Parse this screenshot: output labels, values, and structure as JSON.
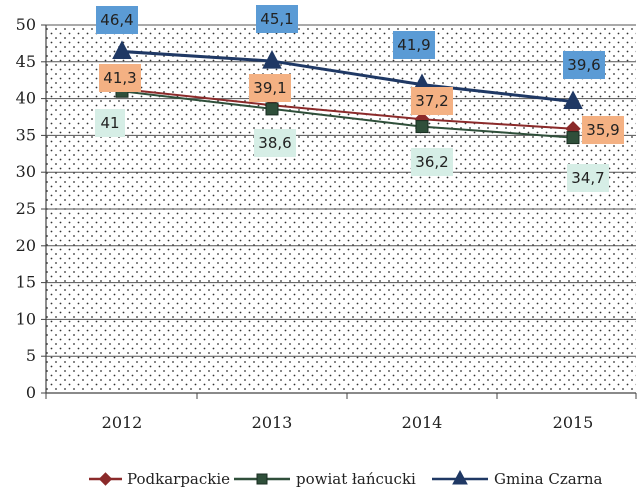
{
  "chart_data": {
    "type": "line",
    "categories": [
      "2012",
      "2013",
      "2014",
      "2015"
    ],
    "ylim": [
      0,
      50
    ],
    "yticks": [
      0,
      5,
      10,
      15,
      20,
      25,
      30,
      35,
      40,
      45,
      50
    ],
    "grid": true,
    "legend_position": "bottom",
    "series": [
      {
        "name": "Podkarpackie",
        "values": [
          41.3,
          39.1,
          37.2,
          35.9
        ],
        "labels": [
          "41,3",
          "39,1",
          "37,2",
          "35,9"
        ],
        "color": "#8b2a2a",
        "marker": "diamond",
        "label_bg": "#f4b183"
      },
      {
        "name": "powiat łańcucki",
        "values": [
          41,
          38.6,
          36.2,
          34.7
        ],
        "labels": [
          "41",
          "38,6",
          "36,2",
          "34,7"
        ],
        "color": "#2f4f3a",
        "marker": "square",
        "label_bg": "#d6eee6"
      },
      {
        "name": "Gmina Czarna",
        "values": [
          46.4,
          45.1,
          41.9,
          39.6
        ],
        "labels": [
          "46,4",
          "45,1",
          "41,9",
          "39,6"
        ],
        "color": "#1f3864",
        "marker": "triangle",
        "label_bg": "#5b9bd5"
      }
    ]
  }
}
